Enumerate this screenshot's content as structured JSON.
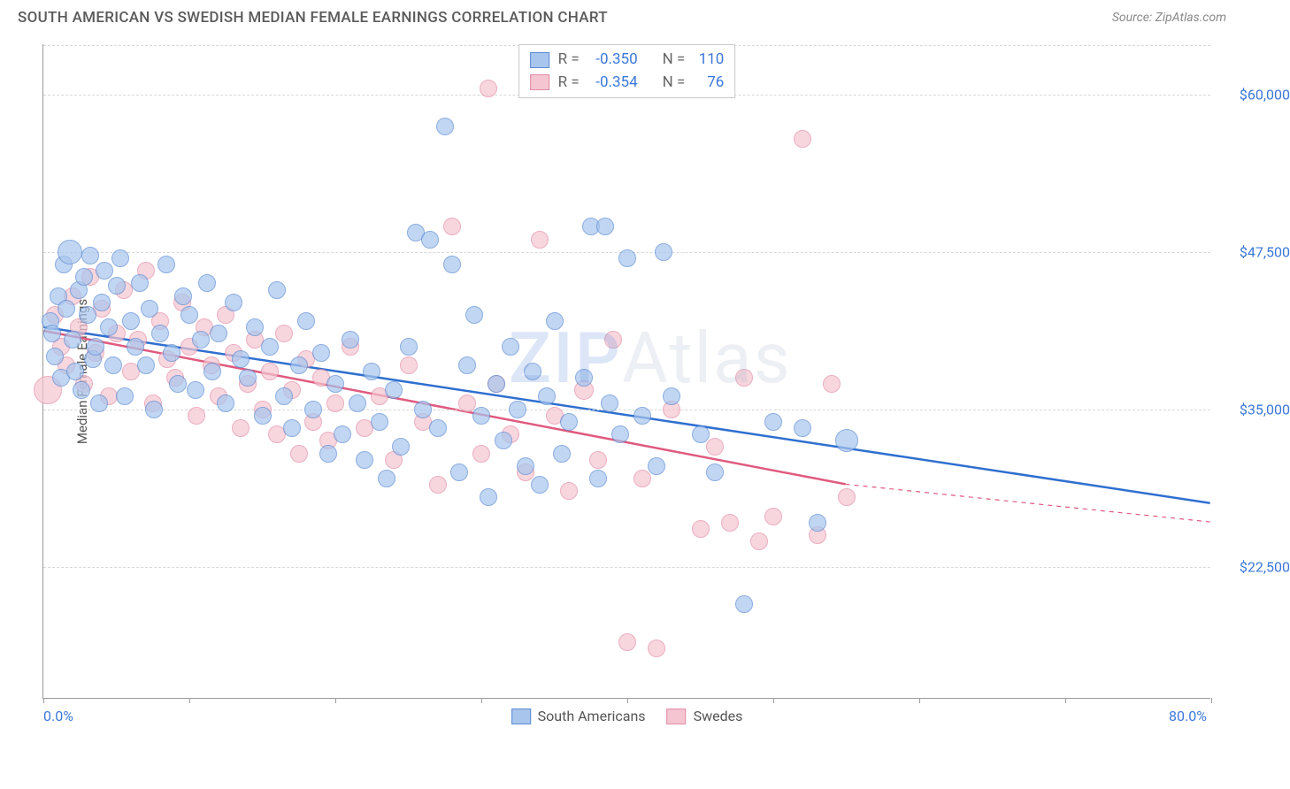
{
  "header": {
    "title": "SOUTH AMERICAN VS SWEDISH MEDIAN FEMALE EARNINGS CORRELATION CHART",
    "source": "Source: ZipAtlas.com"
  },
  "watermark": {
    "left": "ZIP",
    "right": "Atlas"
  },
  "chart": {
    "type": "scatter",
    "background_color": "#ffffff",
    "grid_color": "#d8d8d8",
    "axis_color": "#9b9b9b",
    "text_color": "#5a5a5a",
    "tick_label_color": "#3b78d8",
    "y_axis_title": "Median Female Earnings",
    "y_axis_fontsize": 15,
    "tick_fontsize": 16,
    "xlim": [
      0,
      80
    ],
    "ylim": [
      12000,
      64000
    ],
    "x_ticks": [
      0,
      10,
      20,
      30,
      40,
      50,
      60,
      70,
      80
    ],
    "x_tick_labels": {
      "0": "0.0%",
      "80": "80.0%"
    },
    "y_ticks": [
      22500,
      35000,
      47500,
      60000
    ],
    "y_tick_labels": [
      "$22,500",
      "$35,000",
      "$47,500",
      "$60,000"
    ],
    "point_radius": 10,
    "point_opacity": 0.7,
    "series": [
      {
        "name": "South Americans",
        "fill_color": "#a8c5ed",
        "stroke_color": "#5b8bd4",
        "trend_color": "#2f6fd0",
        "trend_width": 2.5,
        "r_value": "-0.350",
        "n_value": "110",
        "trend": {
          "start": [
            0,
            41500
          ],
          "solid_end": [
            80,
            27500
          ],
          "dash_end": [
            80,
            27500
          ]
        },
        "points": [
          [
            0.5,
            42000
          ],
          [
            0.6,
            41000
          ],
          [
            0.8,
            39200
          ],
          [
            1.0,
            44000
          ],
          [
            1.2,
            37500
          ],
          [
            1.4,
            46500
          ],
          [
            1.6,
            43000
          ],
          [
            1.8,
            47500,
            14
          ],
          [
            2.0,
            40500
          ],
          [
            2.2,
            38000
          ],
          [
            2.4,
            44500
          ],
          [
            2.6,
            36500
          ],
          [
            2.8,
            45500
          ],
          [
            3.0,
            42500
          ],
          [
            3.2,
            47200
          ],
          [
            3.4,
            39000
          ],
          [
            3.6,
            40000
          ],
          [
            3.8,
            35500
          ],
          [
            4.0,
            43500
          ],
          [
            4.2,
            46000
          ],
          [
            4.5,
            41500
          ],
          [
            4.8,
            38500
          ],
          [
            5.0,
            44800
          ],
          [
            5.3,
            47000
          ],
          [
            5.6,
            36000
          ],
          [
            6.0,
            42000
          ],
          [
            6.3,
            40000
          ],
          [
            6.6,
            45000
          ],
          [
            7.0,
            38500
          ],
          [
            7.3,
            43000
          ],
          [
            7.6,
            35000
          ],
          [
            8.0,
            41000
          ],
          [
            8.4,
            46500
          ],
          [
            8.8,
            39500
          ],
          [
            9.2,
            37000
          ],
          [
            9.6,
            44000
          ],
          [
            10.0,
            42500
          ],
          [
            10.4,
            36500
          ],
          [
            10.8,
            40500
          ],
          [
            11.2,
            45000
          ],
          [
            11.6,
            38000
          ],
          [
            12.0,
            41000
          ],
          [
            12.5,
            35500
          ],
          [
            13.0,
            43500
          ],
          [
            13.5,
            39000
          ],
          [
            14.0,
            37500
          ],
          [
            14.5,
            41500
          ],
          [
            15.0,
            34500
          ],
          [
            15.5,
            40000
          ],
          [
            16.0,
            44500
          ],
          [
            16.5,
            36000
          ],
          [
            17.0,
            33500
          ],
          [
            17.5,
            38500
          ],
          [
            18.0,
            42000
          ],
          [
            18.5,
            35000
          ],
          [
            19.0,
            39500
          ],
          [
            19.5,
            31500
          ],
          [
            20.0,
            37000
          ],
          [
            20.5,
            33000
          ],
          [
            21.0,
            40500
          ],
          [
            21.5,
            35500
          ],
          [
            22.0,
            31000
          ],
          [
            22.5,
            38000
          ],
          [
            23.0,
            34000
          ],
          [
            23.5,
            29500
          ],
          [
            24.0,
            36500
          ],
          [
            24.5,
            32000
          ],
          [
            25.0,
            40000
          ],
          [
            25.5,
            49000
          ],
          [
            26.0,
            35000
          ],
          [
            26.5,
            48500
          ],
          [
            27.0,
            33500
          ],
          [
            27.5,
            57500
          ],
          [
            28.0,
            46500
          ],
          [
            28.5,
            30000
          ],
          [
            29.0,
            38500
          ],
          [
            29.5,
            42500
          ],
          [
            30.0,
            34500
          ],
          [
            30.5,
            28000
          ],
          [
            31.0,
            37000
          ],
          [
            31.5,
            32500
          ],
          [
            32.0,
            40000
          ],
          [
            32.5,
            35000
          ],
          [
            33.0,
            30500
          ],
          [
            33.5,
            38000
          ],
          [
            34.0,
            29000
          ],
          [
            34.5,
            36000
          ],
          [
            35.0,
            42000
          ],
          [
            35.5,
            31500
          ],
          [
            36.0,
            34000
          ],
          [
            37.0,
            37500
          ],
          [
            37.5,
            49500
          ],
          [
            38.0,
            29500
          ],
          [
            38.5,
            49500
          ],
          [
            38.8,
            35500
          ],
          [
            39.5,
            33000
          ],
          [
            40.0,
            47000
          ],
          [
            41.0,
            34500
          ],
          [
            42.0,
            30500
          ],
          [
            42.5,
            47500
          ],
          [
            43.0,
            36000
          ],
          [
            45.0,
            33000
          ],
          [
            46.0,
            30000
          ],
          [
            48.0,
            19500
          ],
          [
            50.0,
            34000
          ],
          [
            52.0,
            33500
          ],
          [
            55.0,
            32500,
            13
          ],
          [
            53.0,
            26000
          ]
        ]
      },
      {
        "name": "Swedes",
        "fill_color": "#f5c5d1",
        "stroke_color": "#e38da4",
        "trend_color": "#e05a7f",
        "trend_width": 2.5,
        "r_value": "-0.354",
        "n_value": "76",
        "trend": {
          "start": [
            0,
            41200
          ],
          "solid_end": [
            55,
            29000
          ],
          "dash_end": [
            80,
            26000
          ]
        },
        "points": [
          [
            0.3,
            36500,
            16
          ],
          [
            0.8,
            42500
          ],
          [
            1.2,
            40000
          ],
          [
            1.6,
            38500
          ],
          [
            2.0,
            44000
          ],
          [
            2.4,
            41500
          ],
          [
            2.8,
            37000
          ],
          [
            3.2,
            45500
          ],
          [
            3.6,
            39500
          ],
          [
            4.0,
            43000
          ],
          [
            4.5,
            36000
          ],
          [
            5.0,
            41000
          ],
          [
            5.5,
            44500
          ],
          [
            6.0,
            38000
          ],
          [
            6.5,
            40500
          ],
          [
            7.0,
            46000
          ],
          [
            7.5,
            35500
          ],
          [
            8.0,
            42000
          ],
          [
            8.5,
            39000
          ],
          [
            9.0,
            37500
          ],
          [
            9.5,
            43500
          ],
          [
            10.0,
            40000
          ],
          [
            10.5,
            34500
          ],
          [
            11.0,
            41500
          ],
          [
            11.5,
            38500
          ],
          [
            12.0,
            36000
          ],
          [
            12.5,
            42500
          ],
          [
            13.0,
            39500
          ],
          [
            13.5,
            33500
          ],
          [
            14.0,
            37000
          ],
          [
            14.5,
            40500
          ],
          [
            15.0,
            35000
          ],
          [
            15.5,
            38000
          ],
          [
            16.0,
            33000
          ],
          [
            16.5,
            41000
          ],
          [
            17.0,
            36500
          ],
          [
            17.5,
            31500
          ],
          [
            18.0,
            39000
          ],
          [
            18.5,
            34000
          ],
          [
            19.0,
            37500
          ],
          [
            19.5,
            32500
          ],
          [
            20.0,
            35500
          ],
          [
            21.0,
            40000
          ],
          [
            22.0,
            33500
          ],
          [
            23.0,
            36000
          ],
          [
            24.0,
            31000
          ],
          [
            25.0,
            38500
          ],
          [
            26.0,
            34000
          ],
          [
            27.0,
            29000
          ],
          [
            28.0,
            49500
          ],
          [
            29.0,
            35500
          ],
          [
            30.0,
            31500
          ],
          [
            30.5,
            60500
          ],
          [
            31.0,
            37000
          ],
          [
            32.0,
            33000
          ],
          [
            33.0,
            30000
          ],
          [
            34.0,
            48500
          ],
          [
            35.0,
            34500
          ],
          [
            36.0,
            28500
          ],
          [
            37.0,
            36500,
            11
          ],
          [
            38.0,
            31000
          ],
          [
            39.0,
            40500
          ],
          [
            40.0,
            16500
          ],
          [
            41.0,
            29500
          ],
          [
            42.0,
            16000
          ],
          [
            43.0,
            35000
          ],
          [
            45.0,
            25500
          ],
          [
            46.0,
            32000
          ],
          [
            47.0,
            26000
          ],
          [
            48.0,
            37500
          ],
          [
            49.0,
            24500
          ],
          [
            50.0,
            26500
          ],
          [
            52.0,
            56500
          ],
          [
            54.0,
            37000
          ],
          [
            53.0,
            25000
          ],
          [
            55.0,
            28000
          ]
        ]
      }
    ],
    "legend": {
      "position": "top-center",
      "bottom_position": "bottom-center",
      "swatch_border_blue": "#5b8bd4",
      "swatch_fill_blue": "#a8c5ed",
      "swatch_border_pink": "#e38da4",
      "swatch_fill_pink": "#f5c5d1",
      "r_label": "R =",
      "n_label": "N ="
    }
  }
}
